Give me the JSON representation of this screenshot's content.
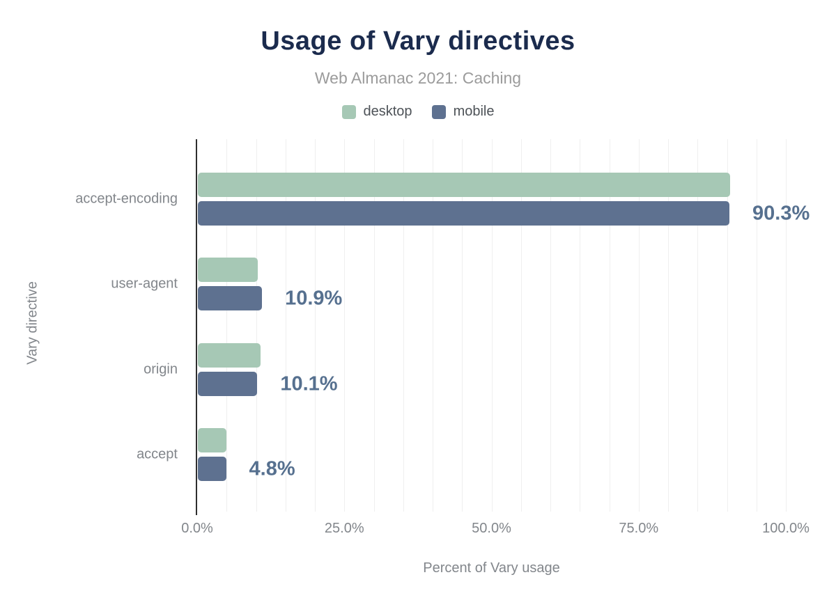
{
  "chart_data": {
    "type": "bar",
    "orientation": "horizontal",
    "title": "Usage of Vary directives",
    "subtitle": "Web Almanac 2021: Caching",
    "xlabel": "Percent of Vary usage",
    "ylabel": "Vary directive",
    "xlim": [
      0,
      100
    ],
    "grid_step": 5,
    "grid": true,
    "legend_position": "top",
    "categories": [
      "accept-encoding",
      "user-agent",
      "origin",
      "accept"
    ],
    "series": [
      {
        "name": "desktop",
        "color": "#a6c8b5",
        "values": [
          90.4,
          10.2,
          10.6,
          4.9
        ]
      },
      {
        "name": "mobile",
        "color": "#5e7190",
        "values": [
          90.3,
          10.9,
          10.1,
          4.8
        ]
      }
    ],
    "value_labels": [
      "90.3%",
      "10.9%",
      "10.1%",
      "4.8%"
    ],
    "value_label_series": "mobile",
    "x_ticks": [
      {
        "label": "0.0%",
        "value": 0
      },
      {
        "label": "25.0%",
        "value": 25
      },
      {
        "label": "50.0%",
        "value": 50
      },
      {
        "label": "75.0%",
        "value": 75
      },
      {
        "label": "100.0%",
        "value": 100
      }
    ]
  },
  "colors": {
    "title": "#1b2b4d",
    "subtitle": "#9b9b9b",
    "legend_text": "#4d5257",
    "axis_text": "#82868b",
    "value_label": "#56708f",
    "axis_line": "#2e2e2e",
    "gridline": "#efefef",
    "background": "#ffffff"
  }
}
